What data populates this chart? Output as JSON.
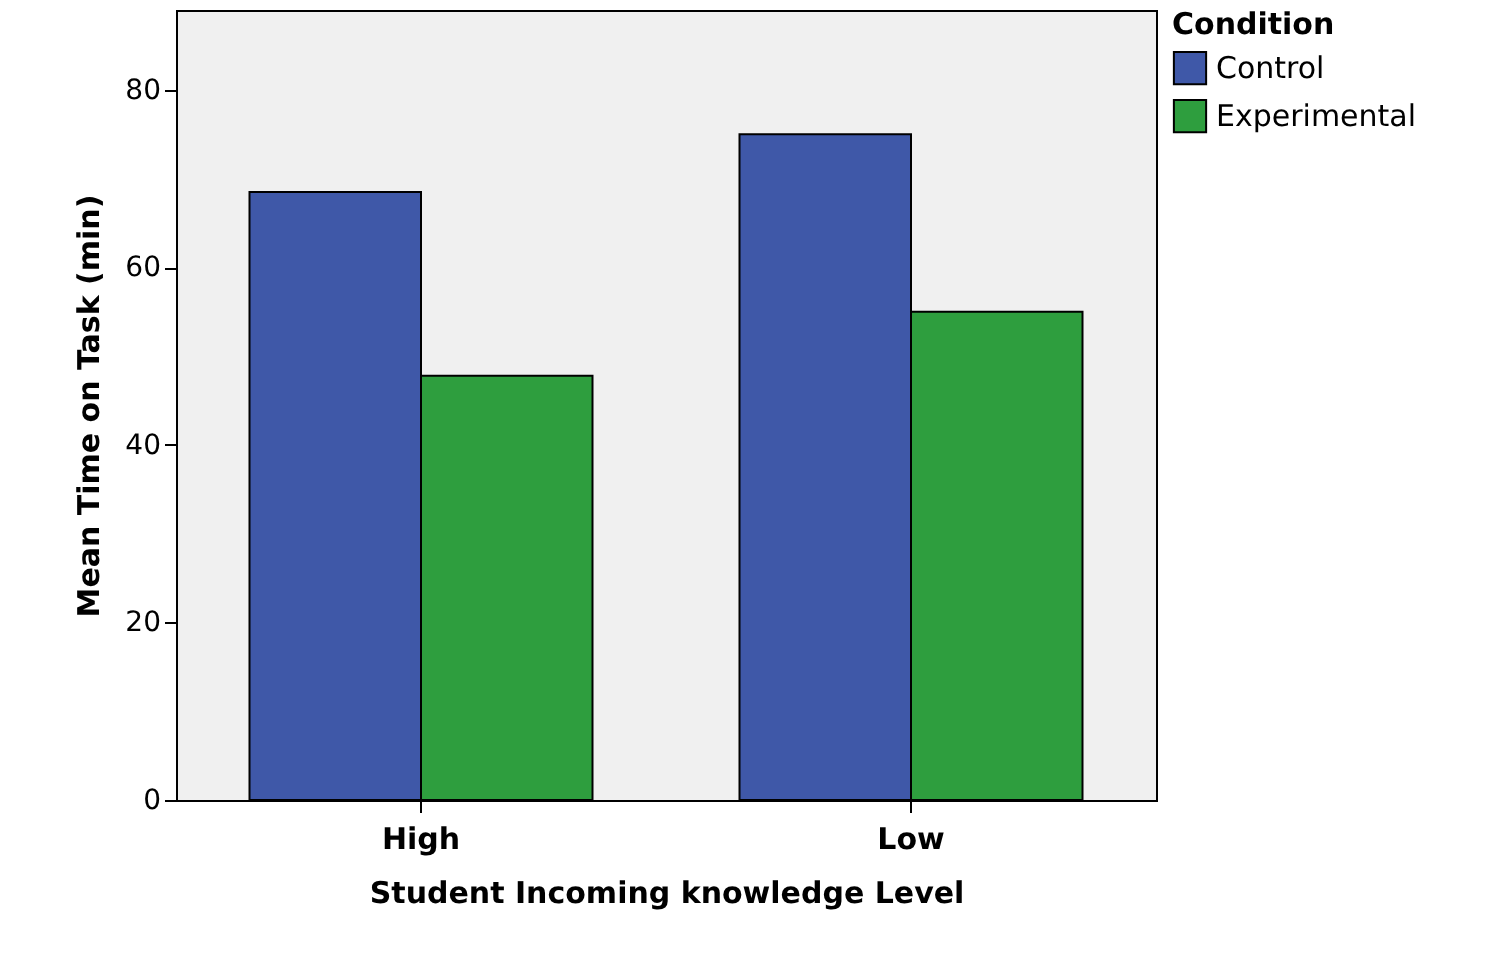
{
  "chart_data": {
    "type": "bar",
    "xlabel": "Student Incoming knowledge Level",
    "ylabel": "Mean Time on Task (min)",
    "legend_title": "Condition",
    "categories": [
      "High",
      "Low"
    ],
    "series": [
      {
        "name": "Control",
        "color": "#3f58a8",
        "values": [
          68.5,
          75
        ]
      },
      {
        "name": "Experimental",
        "color": "#2e9e3e",
        "values": [
          47.8,
          55
        ]
      }
    ],
    "ylim": [
      0,
      89
    ],
    "yticks": [
      0,
      20,
      40,
      60,
      80
    ],
    "grid": false,
    "legend": "top right"
  }
}
